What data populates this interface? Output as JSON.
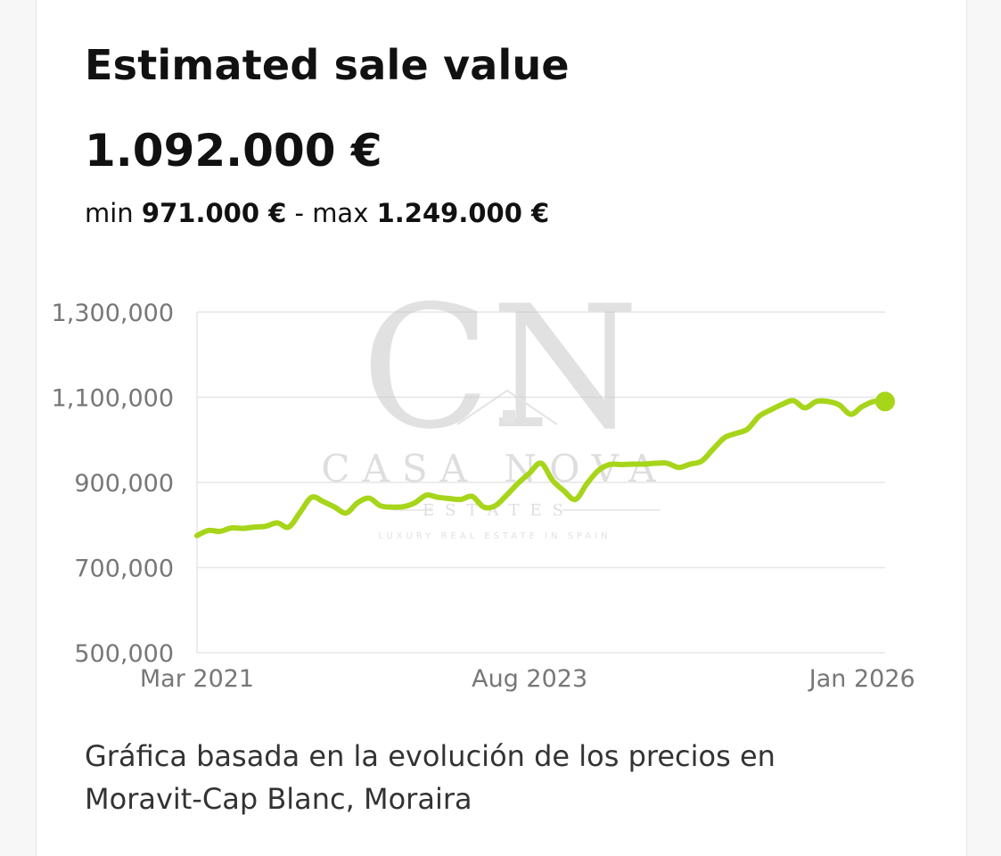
{
  "header": {
    "title": "Estimated sale value",
    "value": "1.092.000 €",
    "min_label": "min",
    "min_value": "971.000 €",
    "separator": "-",
    "max_label": "max",
    "max_value": "1.249.000 €"
  },
  "watermark": {
    "monogram": "CN",
    "brand": "CASA NOVA",
    "sub": "ESTATES",
    "tagline": "LUXURY REAL ESTATE IN SPAIN"
  },
  "colors": {
    "line": "#a6d51a",
    "grid": "#e6e6e6",
    "tick": "#777777"
  },
  "chart_data": {
    "type": "line",
    "title": "",
    "xlabel": "",
    "ylabel": "",
    "ylim": [
      500000,
      1300000
    ],
    "y_ticks": [
      500000,
      700000,
      900000,
      1100000,
      1300000
    ],
    "y_tick_labels": [
      "500,000",
      "700,000",
      "900,000",
      "1,100,000",
      "1,300,000"
    ],
    "x_tick_labels": [
      "Mar 2021",
      "Aug 2023",
      "Jan 2026"
    ],
    "x_tick_values": [
      "2021-03",
      "2023-08",
      "2026-01"
    ],
    "grid": true,
    "legend": "none",
    "series": [
      {
        "x": [
          "2021-03",
          "2021-04",
          "2021-05",
          "2021-06",
          "2021-07",
          "2021-08",
          "2021-09",
          "2021-10",
          "2021-11",
          "2021-12",
          "2022-01",
          "2022-02",
          "2022-03",
          "2022-04",
          "2022-05",
          "2022-06",
          "2022-07",
          "2022-08",
          "2022-09",
          "2022-10",
          "2022-11",
          "2022-12",
          "2023-01",
          "2023-02",
          "2023-03",
          "2023-04",
          "2023-05",
          "2023-06",
          "2023-07",
          "2023-08",
          "2023-09",
          "2023-10",
          "2023-11",
          "2023-12",
          "2024-01",
          "2024-02",
          "2024-03",
          "2024-04",
          "2024-05",
          "2024-06",
          "2024-07",
          "2024-08",
          "2024-09",
          "2024-10",
          "2024-11",
          "2024-12",
          "2025-01",
          "2025-02",
          "2025-03",
          "2025-04",
          "2025-05",
          "2025-06",
          "2025-07",
          "2025-08",
          "2025-09",
          "2025-10",
          "2025-11",
          "2025-12",
          "2026-01",
          "2026-02",
          "2026-03"
        ],
        "values": [
          775000,
          787000,
          785000,
          793000,
          792000,
          795000,
          797000,
          805000,
          795000,
          830000,
          865000,
          855000,
          842000,
          828000,
          852000,
          863000,
          845000,
          842000,
          843000,
          852000,
          870000,
          865000,
          862000,
          860000,
          867000,
          842000,
          845000,
          870000,
          898000,
          922000,
          945000,
          905000,
          880000,
          860000,
          897000,
          928000,
          942000,
          942000,
          943000,
          943000,
          945000,
          945000,
          935000,
          943000,
          950000,
          978000,
          1005000,
          1015000,
          1025000,
          1055000,
          1070000,
          1083000,
          1092000,
          1075000,
          1090000,
          1090000,
          1082000,
          1060000,
          1078000,
          1090000,
          1090000
        ]
      }
    ]
  },
  "caption": "Gráfica basada en la evolución de los precios en Moravit-Cap Blanc, Moraira"
}
